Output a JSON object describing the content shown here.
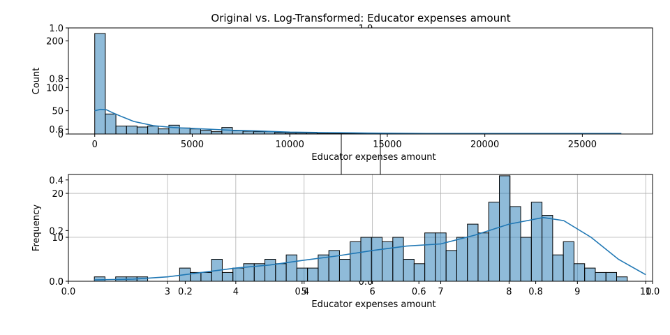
{
  "figure": {
    "title": "Original vs. Log-Transformed: Educator expenses amount"
  },
  "chart_data": [
    {
      "type": "bar",
      "panel": "top",
      "xlabel": "Educator expenses amount",
      "ylabel": "Count",
      "xlim": [
        -1350,
        28600
      ],
      "ylim": [
        0,
        228
      ],
      "xticks": [
        0,
        5000,
        10000,
        15000,
        20000,
        25000
      ],
      "yticks": [
        0,
        50,
        100,
        200
      ],
      "bin_start": 0,
      "bin_width": 543,
      "counts": [
        216,
        43,
        17,
        17,
        15,
        17,
        11,
        19,
        13,
        11,
        8,
        5,
        14,
        7,
        6,
        5,
        5,
        3,
        2,
        2,
        2,
        1,
        1,
        1,
        1,
        1,
        1,
        0,
        1,
        0,
        0,
        0,
        0,
        0,
        0,
        0,
        0,
        0,
        0,
        0,
        0,
        0,
        0,
        0,
        0,
        0,
        0,
        0,
        0,
        0
      ],
      "kde": {
        "x": [
          0,
          300,
          600,
          900,
          1400,
          2000,
          3000,
          4000,
          5000,
          6000,
          7000,
          8000,
          10000,
          12000,
          14000,
          17000,
          20000,
          23000,
          27000
        ],
        "y": [
          50,
          53,
          52,
          46,
          37,
          27,
          18,
          14,
          12,
          10,
          8,
          7,
          4,
          3,
          2,
          1,
          1,
          1,
          1
        ]
      },
      "grid": false,
      "color": "#1f77b4"
    },
    {
      "type": "bar",
      "panel": "bottom",
      "xlabel": "Educator expenses amount",
      "ylabel": "Frequency",
      "xlim": [
        1.55,
        10.1
      ],
      "ylim": [
        0,
        24.3
      ],
      "xticks": [
        3,
        4,
        5,
        6,
        7,
        8,
        9,
        10
      ],
      "yticks": [
        0,
        10,
        20
      ],
      "bin_start": 1.93,
      "bin_width": 0.156,
      "counts": [
        1,
        0,
        1,
        1,
        1,
        0,
        0,
        0,
        3,
        2,
        2,
        5,
        2,
        3,
        4,
        4,
        5,
        4,
        6,
        3,
        3,
        6,
        7,
        5,
        9,
        10,
        10,
        9,
        10,
        5,
        4,
        11,
        11,
        7,
        10,
        13,
        11,
        18,
        24,
        17,
        10,
        18,
        15,
        6,
        9,
        4,
        3,
        2,
        2,
        1
      ],
      "kde": {
        "x": [
          1.93,
          2.5,
          3.0,
          3.5,
          4.0,
          4.5,
          5.0,
          5.5,
          6.0,
          6.5,
          7.0,
          7.5,
          8.0,
          8.5,
          8.8,
          9.2,
          9.6,
          10.0
        ],
        "y": [
          0.3,
          0.5,
          1.0,
          2.0,
          3.0,
          3.7,
          4.8,
          5.8,
          7.0,
          8.0,
          8.5,
          10.5,
          13.0,
          14.5,
          13.8,
          10.0,
          5.0,
          1.5
        ]
      },
      "grid": true,
      "color": "#1f77b4"
    }
  ],
  "overlay": {
    "xticks": [
      {
        "value": 0.0,
        "label": "0.0"
      },
      {
        "value": 0.2,
        "label": "0.2"
      },
      {
        "value": 0.4,
        "label": "0.4"
      },
      {
        "value": 0.6,
        "label": "0.6"
      },
      {
        "value": 0.8,
        "label": "0.8"
      },
      {
        "value": 1.0,
        "label": "1.0"
      }
    ],
    "yticks": [
      {
        "value": 0.0,
        "label": "0.0"
      },
      {
        "value": 0.2,
        "label": "0.2"
      },
      {
        "value": 0.4,
        "label": "0.4"
      },
      {
        "value": 0.6,
        "label": "0.6"
      },
      {
        "value": 0.8,
        "label": "0.8"
      },
      {
        "value": 1.0,
        "label": "1.0"
      }
    ],
    "inner_top_label": "1.0",
    "inner_bottom_label": "0.0"
  }
}
